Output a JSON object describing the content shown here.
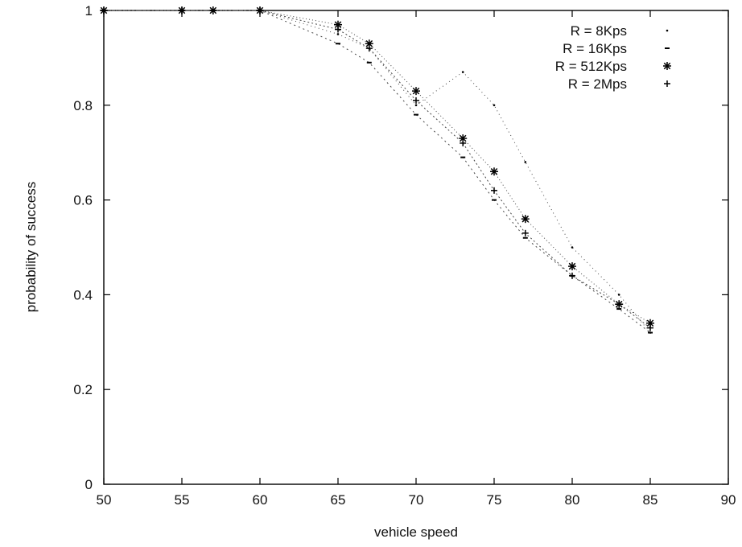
{
  "chart_data": {
    "type": "line",
    "title": "",
    "xlabel": "vehicle speed",
    "ylabel": "probability of success",
    "xlim": [
      50,
      90
    ],
    "ylim": [
      0,
      1
    ],
    "x_ticks": [
      "50",
      "55",
      "60",
      "65",
      "70",
      "75",
      "80",
      "85",
      "90"
    ],
    "y_ticks": [
      "0",
      "0.2",
      "0.4",
      "0.6",
      "0.8",
      "1"
    ],
    "grid": false,
    "legend_position": "top-right",
    "x": [
      50,
      55,
      57,
      60,
      65,
      67,
      70,
      73,
      75,
      77,
      80,
      83,
      85
    ],
    "series": [
      {
        "name": "R = 8Kps",
        "marker": "dot",
        "values": [
          1,
          1,
          1,
          1,
          0.95,
          0.92,
          0.8,
          0.87,
          0.8,
          0.68,
          0.5,
          0.4,
          0.32
        ]
      },
      {
        "name": "R = 16Kps",
        "marker": "dash",
        "values": [
          1,
          1,
          1,
          1,
          0.93,
          0.89,
          0.78,
          0.69,
          0.6,
          0.52,
          0.44,
          0.37,
          0.32
        ]
      },
      {
        "name": "R = 512Kps",
        "marker": "star",
        "values": [
          1,
          1,
          1,
          1,
          0.97,
          0.93,
          0.83,
          0.73,
          0.66,
          0.56,
          0.46,
          0.38,
          0.34
        ]
      },
      {
        "name": "R = 2Mps",
        "marker": "plus",
        "values": [
          1,
          1,
          1,
          1,
          0.96,
          0.92,
          0.81,
          0.72,
          0.62,
          0.53,
          0.44,
          0.38,
          0.33
        ]
      }
    ]
  }
}
